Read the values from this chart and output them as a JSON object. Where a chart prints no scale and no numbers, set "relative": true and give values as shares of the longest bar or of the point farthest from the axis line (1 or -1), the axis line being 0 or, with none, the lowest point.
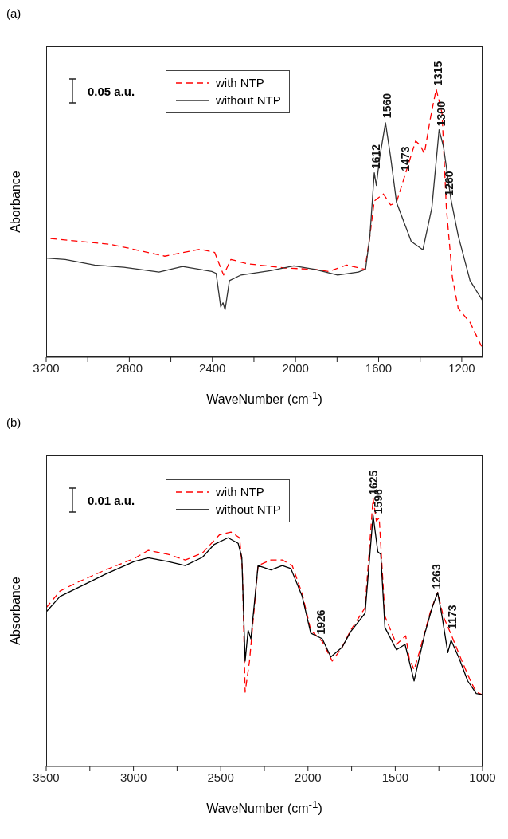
{
  "chart_data": [
    {
      "type": "line",
      "title": "(a)",
      "xlabel": "WaveNumber (cm$^{-1}$)",
      "ylabel": "Aborbance",
      "relative": true,
      "xlim": [
        3200,
        1100
      ],
      "xticks": [
        3200,
        {
          "value": 3000,
          "label": null
        },
        2800,
        {
          "value": 2600,
          "label": null
        },
        2400,
        {
          "value": 2200,
          "label": null
        },
        2000,
        {
          "value": 1800,
          "label": null
        },
        1600,
        {
          "value": 1400,
          "label": null
        },
        1200
      ],
      "legend": "top",
      "grid": false,
      "marker": "none",
      "annotations": [
        "0.05 a.u.",
        {
          "text": "1612",
          "x": 1612,
          "y": 0.69
        },
        {
          "text": "1560",
          "x": 1560,
          "y": 0.88
        },
        {
          "text": "1473",
          "x": 1472,
          "y": 0.682
        },
        {
          "text": "1315",
          "x": 1315,
          "y": 1.0
        },
        {
          "text": "1300",
          "x": 1300,
          "y": 0.85
        },
        {
          "text": "1260",
          "x": 1260,
          "y": 0.59
        }
      ],
      "series": [
        {
          "name": "with NTP",
          "color": "#ff0000",
          "line_style": "dashed",
          "x": [
            3179,
            3037,
            2897,
            2798,
            2629,
            2459,
            2389,
            2360,
            2346,
            2311,
            2233,
            2050,
            1909,
            1839,
            1754,
            1666,
            1642,
            1621,
            1577,
            1542,
            1514,
            1472,
            1422,
            1401,
            1380,
            1351,
            1323,
            1295,
            1274,
            1245,
            1217,
            1160,
            1102
          ],
          "values": [
            0.443,
            0.432,
            0.422,
            0.406,
            0.377,
            0.403,
            0.391,
            0.333,
            0.307,
            0.365,
            0.349,
            0.333,
            0.328,
            0.32,
            0.344,
            0.328,
            0.453,
            0.583,
            0.609,
            0.568,
            0.578,
            0.682,
            0.807,
            0.792,
            0.76,
            0.891,
            1.0,
            0.911,
            0.557,
            0.297,
            0.182,
            0.13,
            0.036
          ]
        },
        {
          "name": "without NTP",
          "color": "#333333",
          "line_style": "solid",
          "x": [
            3200,
            3108,
            2967,
            2826,
            2657,
            2544,
            2403,
            2382,
            2360,
            2349,
            2339,
            2318,
            2262,
            2121,
            2008,
            1909,
            1797,
            1698,
            1663,
            1642,
            1621,
            1611,
            1595,
            1567,
            1542,
            1514,
            1443,
            1387,
            1344,
            1309,
            1288,
            1252,
            1217,
            1160,
            1102
          ],
          "values": [
            0.37,
            0.365,
            0.344,
            0.336,
            0.318,
            0.339,
            0.32,
            0.313,
            0.188,
            0.203,
            0.177,
            0.286,
            0.307,
            0.323,
            0.341,
            0.328,
            0.307,
            0.318,
            0.328,
            0.453,
            0.688,
            0.641,
            0.745,
            0.875,
            0.745,
            0.578,
            0.432,
            0.401,
            0.557,
            0.849,
            0.786,
            0.589,
            0.453,
            0.286,
            0.214
          ]
        }
      ]
    },
    {
      "type": "line",
      "title": "(b)",
      "xlabel": "WaveNumber (cm$^{-1}$)",
      "ylabel": "Absorbance",
      "relative": true,
      "xlim": [
        3500,
        1000
      ],
      "xticks": [
        3500,
        {
          "value": 3250,
          "label": null
        },
        3000,
        {
          "value": 2750,
          "label": null
        },
        2500,
        {
          "value": 2250,
          "label": null
        },
        2000,
        {
          "value": 1750,
          "label": null
        },
        1500,
        {
          "value": 1250,
          "label": null
        },
        1000
      ],
      "legend": "top",
      "grid": false,
      "marker": "none",
      "annotations": [
        "0.01 a.u.",
        {
          "text": "1926",
          "x": 1926,
          "y": 0.48
        },
        {
          "text": "1625",
          "x": 1625,
          "y": 1.0
        },
        {
          "text": "1596",
          "x": 1596,
          "y": 0.93
        },
        {
          "text": "1263",
          "x": 1263,
          "y": 0.65
        },
        {
          "text": "1173",
          "x": 1173,
          "y": 0.5
        }
      ],
      "series": [
        {
          "name": "with NTP",
          "color": "#ff0000",
          "line_style": "dashed",
          "x": [
            3500,
            3421,
            3323,
            3160,
            2997,
            2915,
            2801,
            2703,
            2605,
            2507,
            2441,
            2392,
            2376,
            2360,
            2335,
            2286,
            2212,
            2147,
            2090,
            2033,
            1984,
            1918,
            1861,
            1804,
            1755,
            1673,
            1627,
            1608,
            1592,
            1559,
            1493,
            1440,
            1420,
            1392,
            1363,
            1297,
            1257,
            1225,
            1183,
            1118,
            1069,
            1036,
            1000
          ],
          "values": [
            0.592,
            0.654,
            0.686,
            0.733,
            0.775,
            0.806,
            0.791,
            0.77,
            0.796,
            0.864,
            0.874,
            0.853,
            0.738,
            0.277,
            0.393,
            0.749,
            0.77,
            0.77,
            0.749,
            0.644,
            0.508,
            0.466,
            0.393,
            0.445,
            0.508,
            0.592,
            1.0,
            0.916,
            0.927,
            0.56,
            0.455,
            0.487,
            0.403,
            0.361,
            0.424,
            0.581,
            0.649,
            0.56,
            0.497,
            0.393,
            0.319,
            0.277,
            0.267
          ]
        },
        {
          "name": "without NTP",
          "color": "#000000",
          "line_style": "solid",
          "x": [
            3500,
            3421,
            3323,
            3160,
            2997,
            2915,
            2801,
            2703,
            2605,
            2539,
            2458,
            2400,
            2379,
            2360,
            2343,
            2327,
            2286,
            2212,
            2147,
            2098,
            2033,
            1984,
            1918,
            1869,
            1804,
            1755,
            1673,
            1627,
            1600,
            1583,
            1559,
            1493,
            1444,
            1420,
            1392,
            1363,
            1330,
            1289,
            1257,
            1232,
            1199,
            1180,
            1134,
            1085,
            1036,
            1000
          ],
          "values": [
            0.576,
            0.634,
            0.665,
            0.717,
            0.764,
            0.778,
            0.764,
            0.749,
            0.78,
            0.827,
            0.853,
            0.832,
            0.78,
            0.393,
            0.508,
            0.476,
            0.749,
            0.733,
            0.749,
            0.738,
            0.634,
            0.497,
            0.476,
            0.408,
            0.445,
            0.503,
            0.571,
            0.937,
            0.801,
            0.791,
            0.518,
            0.435,
            0.455,
            0.393,
            0.319,
            0.403,
            0.497,
            0.592,
            0.649,
            0.56,
            0.424,
            0.471,
            0.403,
            0.319,
            0.272,
            0.267
          ]
        }
      ]
    }
  ]
}
